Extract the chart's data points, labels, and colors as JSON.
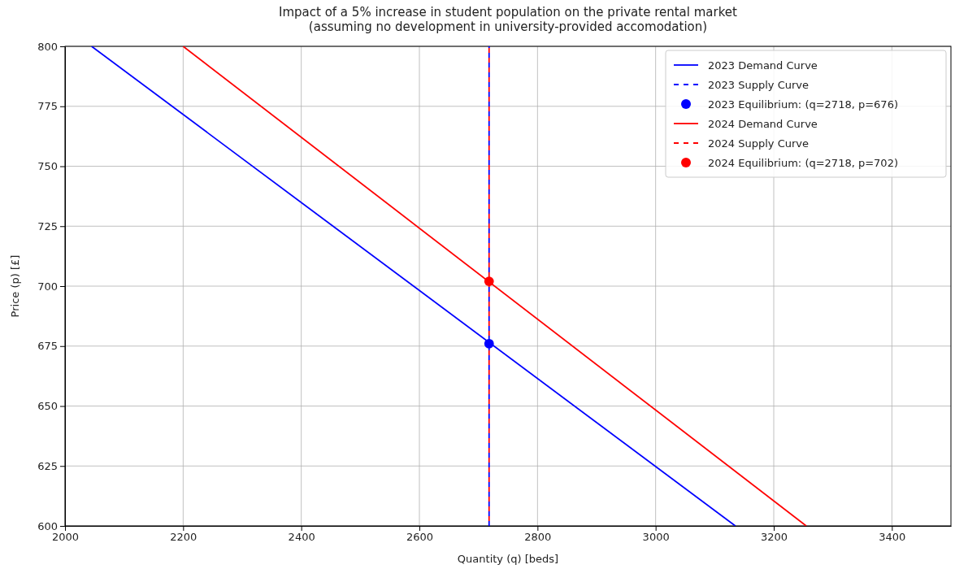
{
  "chart_data": {
    "type": "line",
    "title": "Impact of a 5% increase in student population on the private rental market",
    "subtitle": "(assuming no development in university-provided accomodation)",
    "xlabel": "Quantity (q) [beds]",
    "ylabel": "Price (p) [£]",
    "xlim": [
      2000,
      3500
    ],
    "xticks": [
      2000,
      2200,
      2400,
      2600,
      2800,
      3000,
      3200,
      3400
    ],
    "ylim": [
      600,
      800
    ],
    "yticks": [
      600,
      625,
      650,
      675,
      700,
      725,
      750,
      775,
      800
    ],
    "grid": true,
    "legend": "top right",
    "series": [
      {
        "name": "2023 Demand Curve",
        "color": "#0000ff",
        "line_style": "solid",
        "x": [
          2045,
          3135
        ],
        "values": [
          800,
          600
        ]
      },
      {
        "name": "2023 Supply Curve",
        "color": "#0000ff",
        "line_style": "dashed",
        "x": [
          2718,
          2718
        ],
        "values": [
          600,
          800
        ]
      },
      {
        "name": "2023 Equilibrium: (q=2718, p=676)",
        "type": "scatter",
        "color": "#0000ff",
        "marker": "circle",
        "x": [
          2718
        ],
        "values": [
          676
        ]
      },
      {
        "name": "2024 Demand Curve",
        "color": "#ff0000",
        "line_style": "solid",
        "x": [
          2200,
          3255
        ],
        "values": [
          800,
          600
        ]
      },
      {
        "name": "2024 Supply Curve",
        "color": "#ff0000",
        "line_style": "dashed",
        "x": [
          2718,
          2718
        ],
        "values": [
          600,
          800
        ]
      },
      {
        "name": "2024 Equilibrium: (q=2718, p=702)",
        "type": "scatter",
        "color": "#ff0000",
        "marker": "circle",
        "x": [
          2718
        ],
        "values": [
          702
        ]
      }
    ]
  }
}
